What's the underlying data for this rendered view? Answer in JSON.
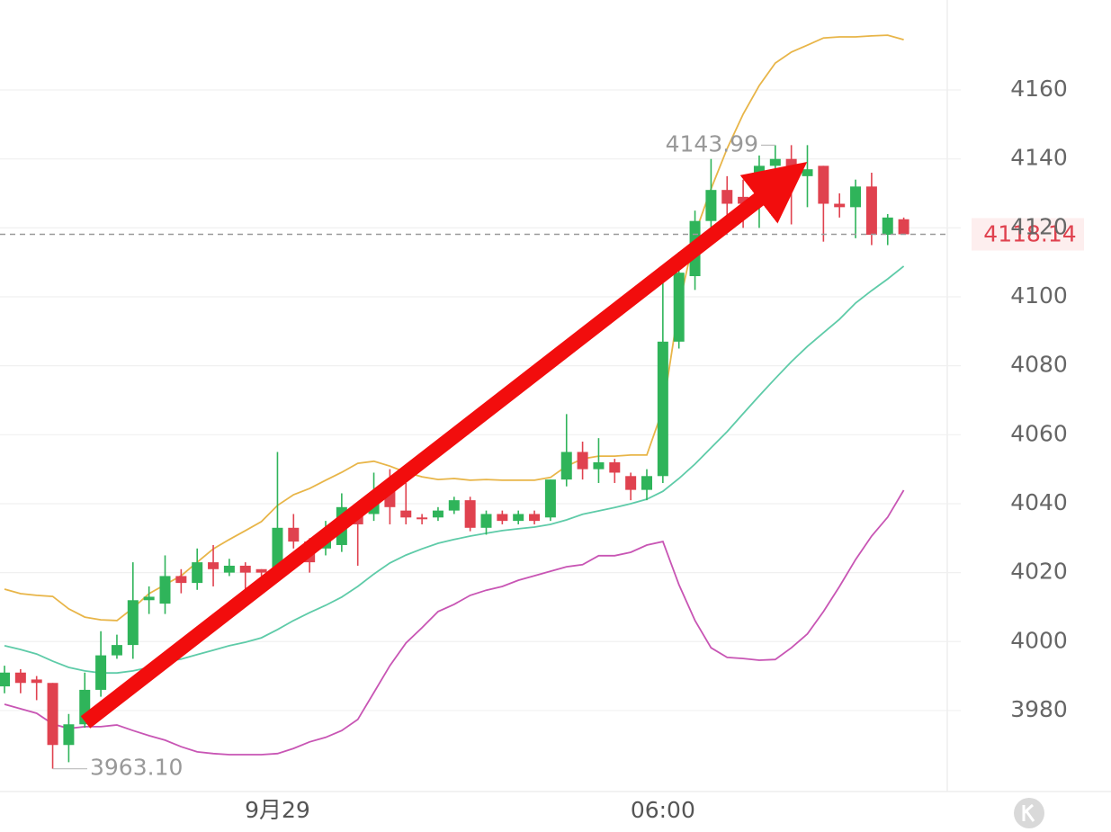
{
  "chart_data": {
    "type": "candlestick",
    "categories": [
      null,
      null,
      null,
      null,
      null,
      null,
      null,
      null,
      null,
      null,
      null,
      null,
      null,
      null,
      null,
      null,
      null,
      "9月29",
      null,
      null,
      null,
      null,
      null,
      null,
      null,
      null,
      null,
      null,
      null,
      null,
      null,
      null,
      null,
      null,
      null,
      null,
      null,
      null,
      null,
      null,
      null,
      "06:00",
      null,
      null,
      null,
      null,
      null,
      null,
      null,
      null,
      null,
      null,
      null,
      null,
      null,
      null,
      null
    ],
    "open": [
      3987,
      3991,
      3989,
      3988,
      3970,
      3976,
      3986,
      3996,
      3999,
      4012,
      4011,
      4019,
      4017,
      4023,
      4020,
      4022,
      4021,
      4020,
      4033,
      4029,
      4027,
      4028,
      4038,
      4037,
      4045,
      4038,
      4036,
      4036,
      4038,
      4041,
      4033,
      4037,
      4035,
      4037,
      4036,
      4047,
      4055,
      4050,
      4052,
      4048,
      4044,
      4048,
      4087,
      4106,
      4122,
      4131,
      4129,
      4131,
      4138,
      4140,
      4135,
      4138,
      4127,
      4126,
      4132,
      4118,
      4122.5
    ],
    "high": [
      3993,
      3992,
      3990,
      3988,
      3979,
      3991,
      4003,
      4002,
      4023,
      4016,
      4025,
      4021,
      4027,
      4028,
      4024,
      4023,
      4021,
      4055,
      4037,
      4030,
      4035,
      4043,
      4039,
      4049,
      4050,
      4046,
      4037,
      4039,
      4042,
      4042,
      4038,
      4038,
      4038,
      4038,
      4047,
      4066,
      4058,
      4059,
      4053,
      4049,
      4050,
      4105,
      4113,
      4125,
      4140,
      4135,
      4134,
      4141,
      4143.99,
      4144,
      4144,
      4138,
      4130,
      4134,
      4136,
      4124,
      4123
    ],
    "low": [
      3985,
      3985,
      3983,
      3963.1,
      3965,
      3975,
      3984,
      3995,
      3995,
      4008,
      4008,
      4014,
      4015,
      4016,
      4019,
      4011,
      4019,
      4019,
      4027,
      4020,
      4025,
      4026,
      4022,
      4035,
      4034,
      4034,
      4034,
      4035,
      4037,
      4032,
      4031,
      4034,
      4034,
      4034,
      4035,
      4045,
      4047,
      4046,
      4046,
      4041,
      4041,
      4046,
      4085,
      4102,
      4118,
      4121,
      4120,
      4120,
      4135,
      4121,
      4126,
      4116,
      4123,
      4117,
      4115,
      4115,
      4118
    ],
    "close": [
      3991,
      3988,
      3988,
      3970,
      3976,
      3986,
      3996,
      3999,
      4012,
      4013,
      4019,
      4017,
      4023,
      4021,
      4022,
      4020,
      4020,
      4033,
      4029,
      4023,
      4032,
      4039,
      4034,
      4043,
      4039,
      4036,
      4035.5,
      4038,
      4041,
      4033,
      4037,
      4035,
      4037,
      4035,
      4047,
      4055,
      4050,
      4052,
      4049,
      4044,
      4048,
      4087,
      4107,
      4122,
      4131,
      4127,
      4127,
      4138,
      4140,
      4135,
      4137,
      4127,
      4126,
      4132,
      4118,
      4123,
      4118.14
    ],
    "up_color": "#2fb45a",
    "down_color": "#e0424f",
    "lines": [
      {
        "color": "#e8b548",
        "values": [
          4015.2,
          4013.9,
          4013.4,
          4013.1,
          4009.5,
          4007.1,
          4006.3,
          4006.1,
          4009.7,
          4013.9,
          4016.5,
          4019.1,
          4023.0,
          4026.9,
          4029.6,
          4032.2,
          4034.8,
          4039.5,
          4042.6,
          4044.4,
          4046.8,
          4049.1,
          4051.7,
          4052.3,
          4050.9,
          4049.1,
          4047.8,
          4047.0,
          4047.3,
          4046.8,
          4047.0,
          4046.8,
          4046.8,
          4046.8,
          4047.6,
          4050.9,
          4053.0,
          4053.8,
          4053.8,
          4054.1,
          4054.1,
          4067.4,
          4097.4,
          4118.3,
          4131.3,
          4143.0,
          4153.0,
          4161.3,
          4167.8,
          4171.0,
          4173.0,
          4175.1,
          4175.4,
          4175.4,
          4175.7,
          4175.9,
          4174.6
        ]
      },
      {
        "color": "#5ecba8",
        "values": [
          3998.8,
          3997.7,
          3996.4,
          3994.3,
          3992.5,
          3991.5,
          3990.9,
          3990.9,
          3991.5,
          3992.5,
          3994.1,
          3994.9,
          3996.2,
          3997.5,
          3998.8,
          3999.8,
          4001.1,
          4003.5,
          4006.1,
          4008.4,
          4010.5,
          4012.9,
          4016.0,
          4019.6,
          4022.8,
          4025.1,
          4026.9,
          4028.5,
          4029.6,
          4030.6,
          4031.4,
          4032.2,
          4032.7,
          4033.2,
          4034.0,
          4035.3,
          4036.9,
          4037.9,
          4038.9,
          4040.0,
          4041.3,
          4043.6,
          4047.3,
          4051.5,
          4056.2,
          4060.9,
          4066.1,
          4071.3,
          4076.3,
          4081.2,
          4085.6,
          4089.6,
          4093.5,
          4098.2,
          4101.8,
          4105.2,
          4108.9
        ]
      },
      {
        "color": "#c855b4",
        "values": [
          3981.8,
          3980.5,
          3979.2,
          3976.1,
          3974.8,
          3975.3,
          3975.3,
          3975.8,
          3974.2,
          3972.7,
          3971.4,
          3969.5,
          3968.0,
          3967.5,
          3967.2,
          3967.2,
          3967.2,
          3967.5,
          3969.0,
          3970.9,
          3972.2,
          3974.2,
          3977.4,
          3985.2,
          3993.0,
          3999.6,
          4004.0,
          4008.7,
          4010.8,
          4013.4,
          4014.9,
          4016.0,
          4017.8,
          4019.1,
          4020.4,
          4021.7,
          4022.3,
          4024.9,
          4024.9,
          4025.9,
          4028.0,
          4029.0,
          4016.5,
          4006.1,
          3998.2,
          3995.4,
          3995.1,
          3994.6,
          3994.8,
          3998.2,
          4002.2,
          4008.7,
          4016.0,
          4023.8,
          4030.6,
          4036.1,
          4043.9
        ]
      }
    ],
    "high_label": 4143.99,
    "low_label": {
      "value": 3963.1,
      "label": "3963.10"
    },
    "last_price": 4118.14,
    "ylim": [
      3956.5,
      4186.1
    ],
    "yticks": [
      3980,
      4000,
      4020,
      4040,
      4060,
      4080,
      4100,
      4120,
      4140,
      4160
    ],
    "grid": true
  }
}
